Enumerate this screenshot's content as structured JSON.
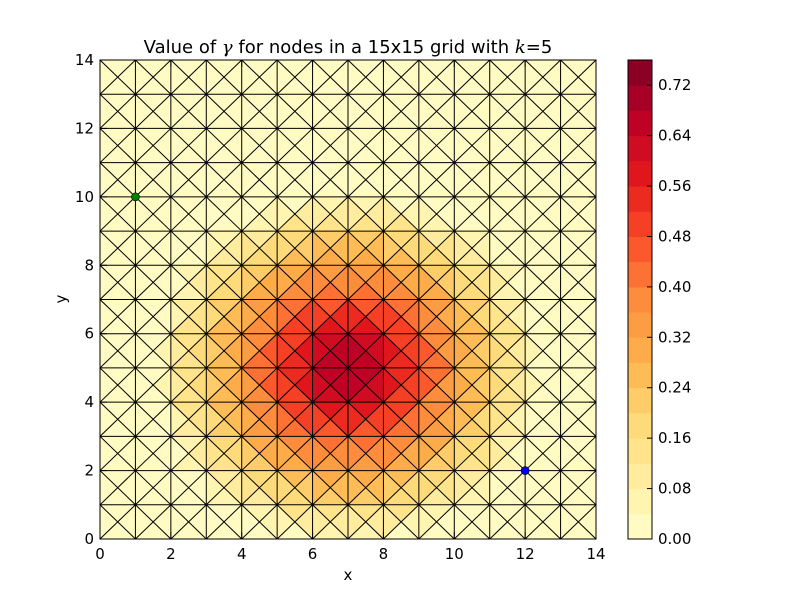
{
  "chart_data": {
    "type": "heatmap",
    "title_prefix": "Value of ",
    "title_symbol": "γ",
    "title_middle": " for nodes in a 15x15 grid with ",
    "title_k_symbol": "k",
    "title_k_eq": "=5",
    "xlabel": "x",
    "ylabel": "y",
    "xlim": [
      0,
      14
    ],
    "ylim": [
      0,
      14
    ],
    "x_ticks": [
      "0",
      "2",
      "4",
      "6",
      "8",
      "10",
      "12",
      "14"
    ],
    "y_ticks": [
      "0",
      "2",
      "4",
      "6",
      "8",
      "10",
      "12",
      "14"
    ],
    "grid_size": 15,
    "k": 5,
    "peak_node": [
      7,
      5
    ],
    "max_value": 0.76,
    "colorbar": {
      "range": [
        0,
        0.76
      ],
      "levels": 19,
      "ticks": [
        "0.00",
        "0.08",
        "0.16",
        "0.24",
        "0.32",
        "0.40",
        "0.48",
        "0.56",
        "0.64",
        "0.72"
      ],
      "colormap": [
        "#ffffcc",
        "#ffeda0",
        "#fed976",
        "#feb24c",
        "#fd8d3c",
        "#fc4e2a",
        "#e31a1c",
        "#bd0026",
        "#800026"
      ]
    },
    "markers": [
      {
        "name": "green-node",
        "x": 1,
        "y": 10,
        "color": "#008000"
      },
      {
        "name": "blue-node",
        "x": 12,
        "y": 2,
        "color": "#0000ff"
      }
    ],
    "mesh_color": "#000000"
  }
}
